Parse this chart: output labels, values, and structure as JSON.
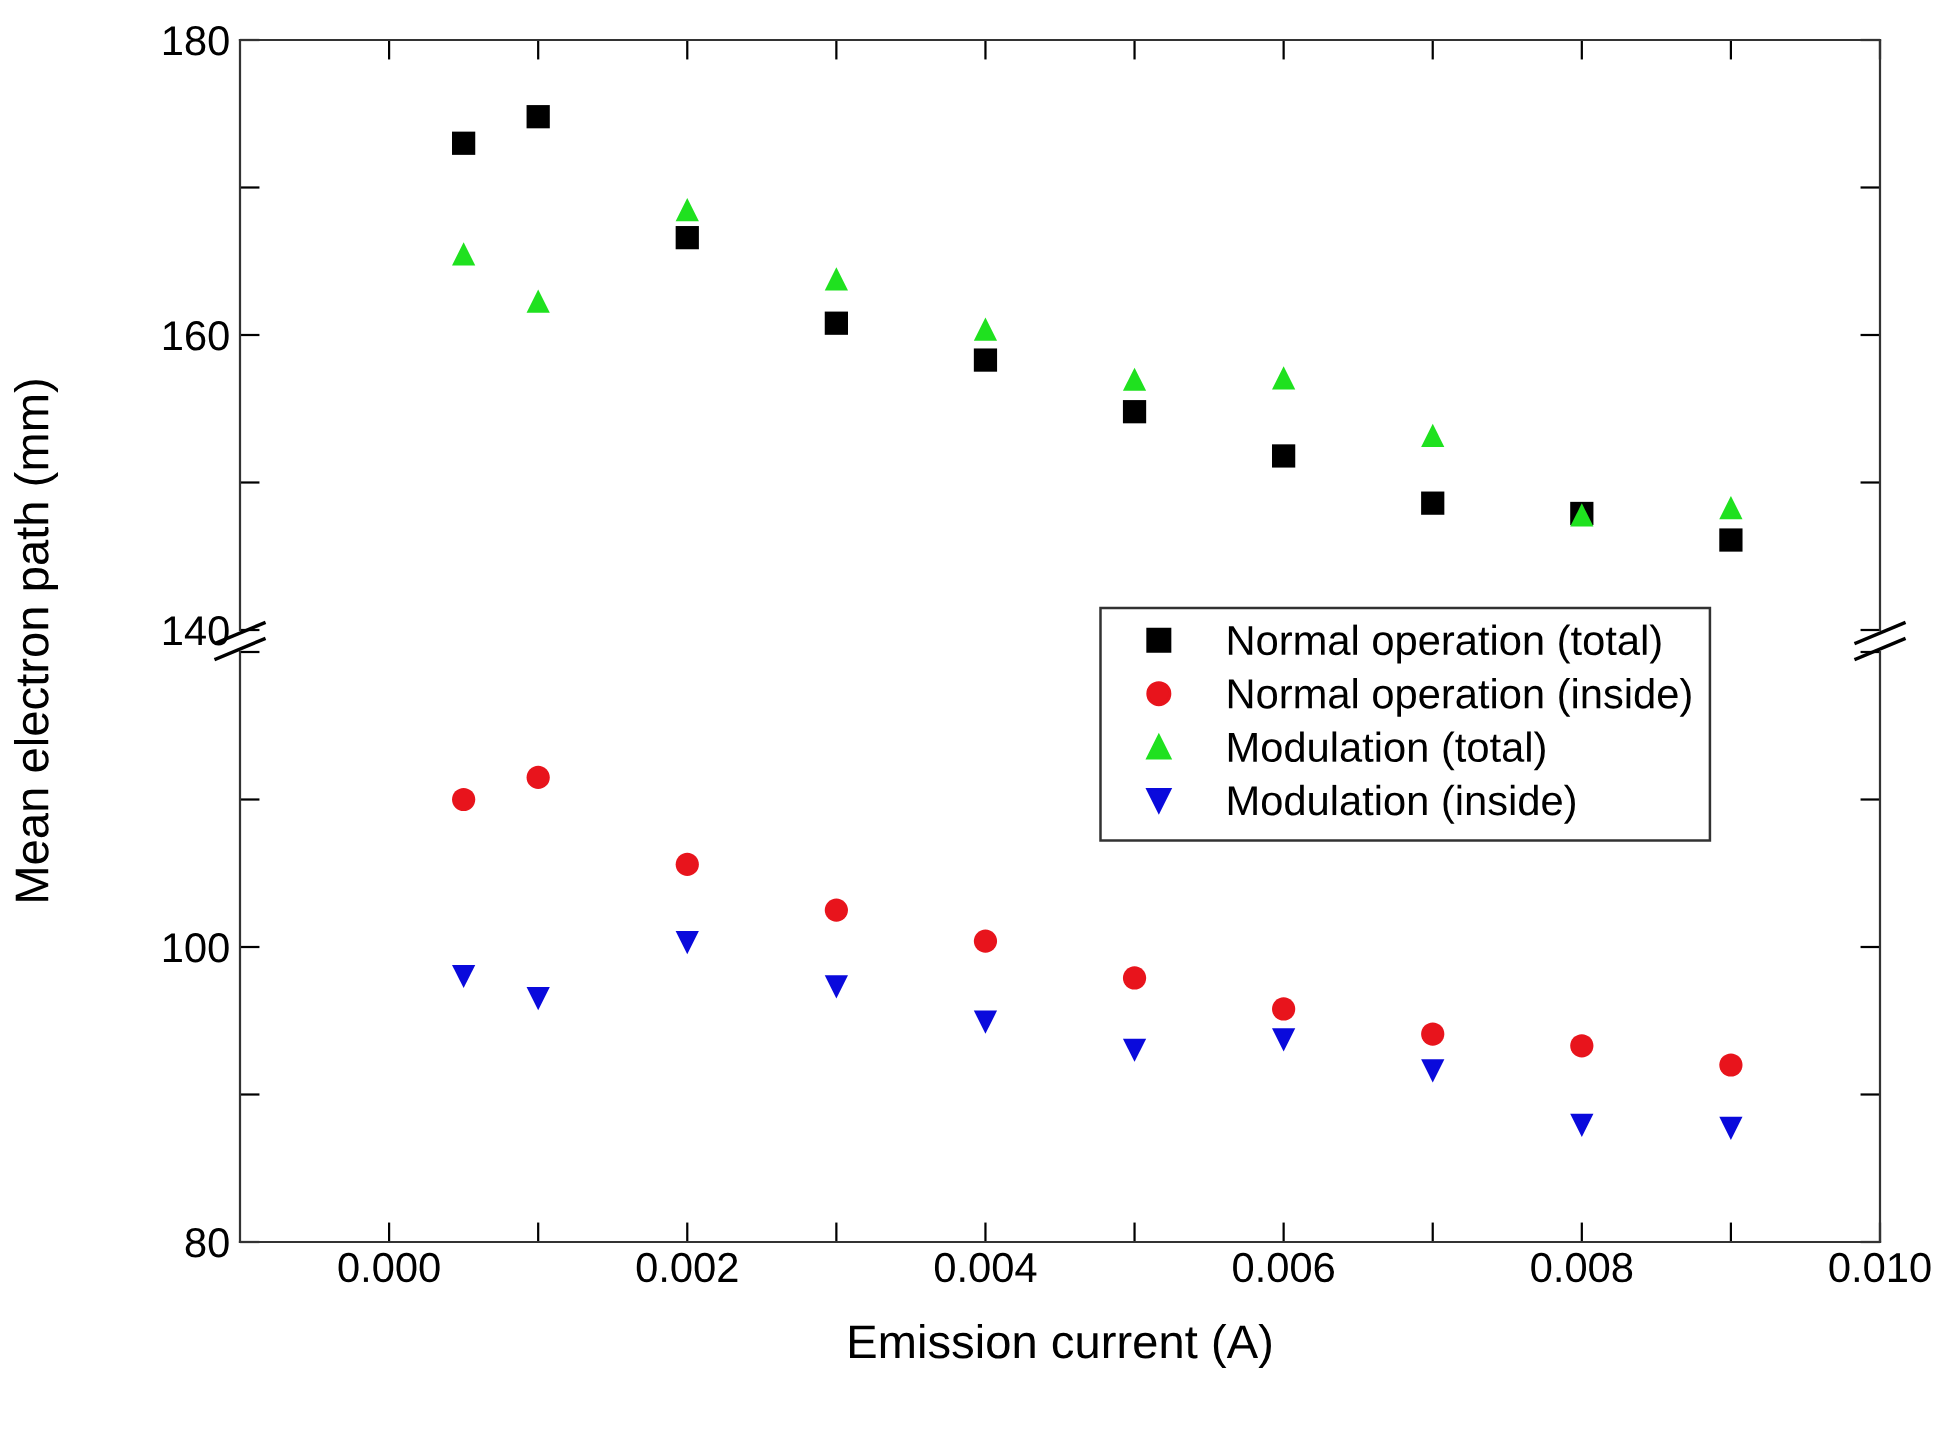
{
  "chart_data": [
    {
      "type": "scatter",
      "x": [
        0.0005,
        0.001,
        0.002,
        0.003,
        0.004,
        0.005,
        0.006,
        0.007,
        0.008,
        0.009
      ],
      "xlim": [
        -0.001,
        0.01
      ],
      "xticks": [
        {
          "value": 0.0,
          "label": null
        },
        {
          "value": 0.001,
          "label": null
        },
        {
          "value": 0.002,
          "label": null
        },
        {
          "value": 0.003,
          "label": null
        },
        {
          "value": 0.004,
          "label": null
        },
        {
          "value": 0.005,
          "label": null
        },
        {
          "value": 0.006,
          "label": null
        },
        {
          "value": 0.007,
          "label": null
        },
        {
          "value": 0.008,
          "label": null
        },
        {
          "value": 0.009,
          "label": null
        },
        {
          "value": 0.01,
          "label": null
        }
      ],
      "ylim": [
        140,
        180
      ],
      "yticks": [
        140,
        {
          "value": 150,
          "label": null
        },
        160,
        {
          "value": 170,
          "label": null
        },
        180
      ],
      "tick_labels": "y",
      "grid": false,
      "legend": "bottom right",
      "series": [
        {
          "name": "Normal operation (total)",
          "color": "#000000",
          "marker": "square",
          "values": [
            173.0,
            174.8,
            166.6,
            160.8,
            158.3,
            154.8,
            151.8,
            148.6,
            147.9,
            146.1
          ]
        },
        {
          "name": "Modulation (total)",
          "color": "#1fe11f",
          "marker": "triangle",
          "values": [
            165.5,
            162.3,
            168.5,
            163.8,
            160.4,
            157.0,
            157.1,
            153.2,
            147.8,
            148.3
          ]
        }
      ]
    },
    {
      "type": "scatter",
      "x": [
        0.0005,
        0.001,
        0.002,
        0.003,
        0.004,
        0.005,
        0.006,
        0.007,
        0.008,
        0.009
      ],
      "xlabel": "Emission current (A)",
      "ylabel": "Mean electron path (mm)",
      "xlim": [
        -0.001,
        0.01
      ],
      "xticks": [
        {
          "value": 0.0,
          "label": "0.000"
        },
        {
          "value": 0.001,
          "label": null
        },
        {
          "value": 0.002,
          "label": "0.002"
        },
        {
          "value": 0.003,
          "label": null
        },
        {
          "value": 0.004,
          "label": "0.004"
        },
        {
          "value": 0.005,
          "label": null
        },
        {
          "value": 0.006,
          "label": "0.006"
        },
        {
          "value": 0.007,
          "label": null
        },
        {
          "value": 0.008,
          "label": "0.008"
        },
        {
          "value": 0.009,
          "label": null
        },
        {
          "value": 0.01,
          "label": "0.010"
        }
      ],
      "ylim": [
        80,
        120
      ],
      "yticks": [
        80,
        {
          "value": 90,
          "label": null
        },
        100,
        {
          "value": 110,
          "label": null
        },
        {
          "value": 120,
          "label": null
        }
      ],
      "grid": false,
      "legend": "top right",
      "series": [
        {
          "name": "Normal operation (inside)",
          "color": "#e8141c",
          "marker": "circle",
          "values": [
            110.0,
            111.5,
            105.6,
            102.5,
            100.4,
            97.9,
            95.8,
            94.1,
            93.3,
            92.0
          ]
        },
        {
          "name": "Modulation (inside)",
          "color": "#0a0adc",
          "marker": "triangle_down",
          "values": [
            98.0,
            96.5,
            100.3,
            97.3,
            94.9,
            93.0,
            93.7,
            91.6,
            87.9,
            87.7
          ]
        }
      ]
    }
  ]
}
